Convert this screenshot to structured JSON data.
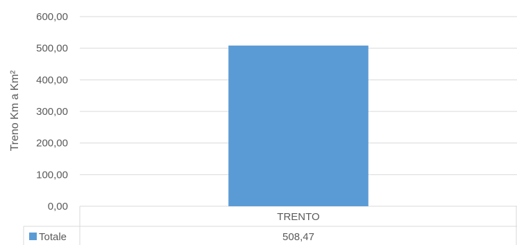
{
  "chart_data": {
    "type": "bar",
    "categories": [
      "TRENTO"
    ],
    "series": [
      {
        "name": "Totale",
        "values": [
          508.47
        ],
        "value_label": "508,47"
      }
    ],
    "ylabel": "Treno Km a Km²",
    "xlabel": "",
    "ylim": [
      0,
      600
    ],
    "yticks": [
      "0,00",
      "100,00",
      "200,00",
      "300,00",
      "400,00",
      "500,00",
      "600,00"
    ],
    "grid": true,
    "legend": "data-table-left",
    "colors": {
      "bar": "#5B9BD5",
      "grid": "#D9D9D9",
      "text": "#595959"
    }
  }
}
